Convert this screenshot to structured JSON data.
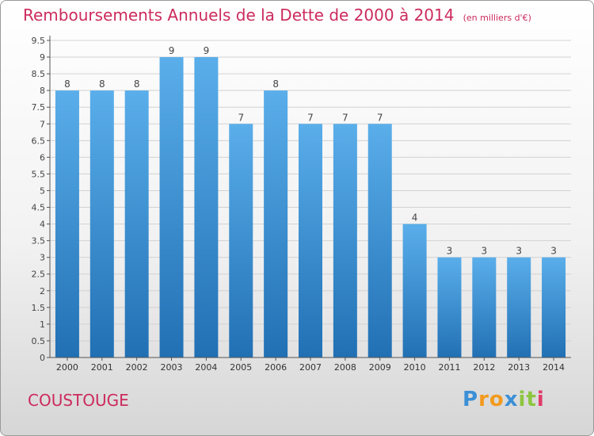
{
  "header": {
    "title": "Remboursements Annuels de la Dette de 2000 à 2014",
    "unit": "(en milliers d'€)"
  },
  "commune": "COUSTOUGE",
  "logo": {
    "text": "Proxiti",
    "letters": [
      {
        "ch": "P",
        "color": "#3b8fd6"
      },
      {
        "ch": "r",
        "color": "#f29a1d"
      },
      {
        "ch": "o",
        "color": "#f29a1d"
      },
      {
        "ch": "x",
        "color": "#3b8fd6"
      },
      {
        "ch": "i",
        "color": "#8cc63f"
      },
      {
        "ch": "t",
        "color": "#8cc63f"
      },
      {
        "ch": "i",
        "color": "#e23b6a"
      }
    ]
  },
  "colors": {
    "title": "#cc2b5e",
    "bar_top": "#5aaeea",
    "bar_bottom": "#2170b4",
    "grid": "#d2d2d2"
  },
  "chart_data": {
    "type": "bar",
    "title": "Remboursements Annuels de la Dette de 2000 à 2014",
    "xlabel": "",
    "ylabel": "",
    "categories": [
      "2000",
      "2001",
      "2002",
      "2003",
      "2004",
      "2005",
      "2006",
      "2007",
      "2008",
      "2009",
      "2010",
      "2011",
      "2012",
      "2013",
      "2014"
    ],
    "values": [
      8,
      8,
      8,
      9,
      9,
      7,
      8,
      7,
      7,
      7,
      4,
      3,
      3,
      3,
      3
    ],
    "ylim": [
      0,
      9.5
    ],
    "yticks": [
      "0",
      "0.5",
      "1",
      "1.5",
      "2",
      "2.5",
      "3",
      "3.5",
      "4",
      "4.5",
      "5",
      "5.5",
      "6",
      "6.5",
      "7",
      "7.5",
      "8",
      "8.5",
      "9",
      "9.5"
    ],
    "grid": true,
    "legend": "none"
  }
}
